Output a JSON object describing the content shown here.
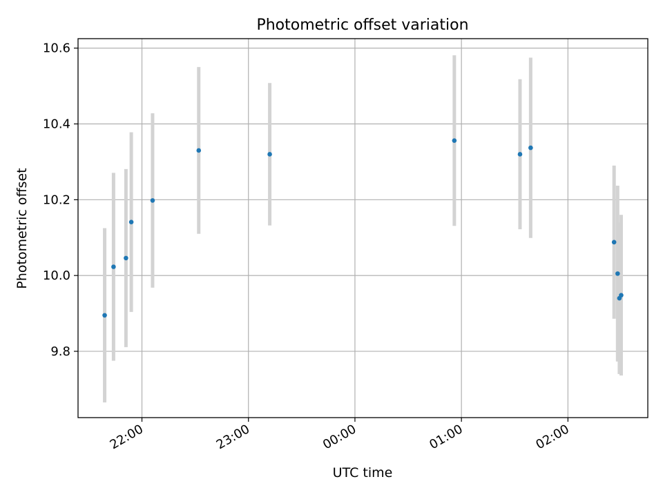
{
  "chart_data": {
    "type": "scatter",
    "title": "Photometric offset variation",
    "xlabel": "UTC time",
    "ylabel": "Photometric offset",
    "grid": true,
    "x_axis": {
      "unit": "hours",
      "range": [
        21.4,
        2.75
      ],
      "ticks": [
        {
          "value": 22,
          "label": "22:00"
        },
        {
          "value": 23,
          "label": "23:00"
        },
        {
          "value": 0,
          "label": "00:00"
        },
        {
          "value": 1,
          "label": "01:00"
        },
        {
          "value": 2,
          "label": "02:00"
        }
      ]
    },
    "y_axis": {
      "range": [
        9.625,
        10.625
      ],
      "ticks": [
        {
          "value": 9.8,
          "label": "9.8"
        },
        {
          "value": 10.0,
          "label": "10.0"
        },
        {
          "value": 10.2,
          "label": "10.2"
        },
        {
          "value": 10.4,
          "label": "10.4"
        },
        {
          "value": 10.6,
          "label": "10.6"
        }
      ]
    },
    "points": [
      {
        "x": "21:39",
        "y": 9.895,
        "yerr": 0.23
      },
      {
        "x": "21:44",
        "y": 10.023,
        "yerr": 0.248
      },
      {
        "x": "21:51",
        "y": 10.046,
        "yerr": 0.235
      },
      {
        "x": "21:54",
        "y": 10.141,
        "yerr": 0.237
      },
      {
        "x": "22:06",
        "y": 10.198,
        "yerr": 0.23
      },
      {
        "x": "22:32",
        "y": 10.33,
        "yerr": 0.22
      },
      {
        "x": "23:12",
        "y": 10.32,
        "yerr": 0.188
      },
      {
        "x": "00:56",
        "y": 10.356,
        "yerr": 0.225
      },
      {
        "x": "01:33",
        "y": 10.32,
        "yerr": 0.198
      },
      {
        "x": "01:39",
        "y": 10.337,
        "yerr": 0.238
      },
      {
        "x": "02:26",
        "y": 10.088,
        "yerr": 0.202
      },
      {
        "x": "02:28",
        "y": 10.005,
        "yerr": 0.232
      },
      {
        "x": "02:29",
        "y": 9.94,
        "yerr": 0.2
      },
      {
        "x": "02:30",
        "y": 9.948,
        "yerr": 0.212
      }
    ],
    "colors": {
      "point": "#1f77b4",
      "errorbar": "#d3d3d3",
      "grid": "#b0b0b0",
      "axes": "#000000"
    }
  }
}
